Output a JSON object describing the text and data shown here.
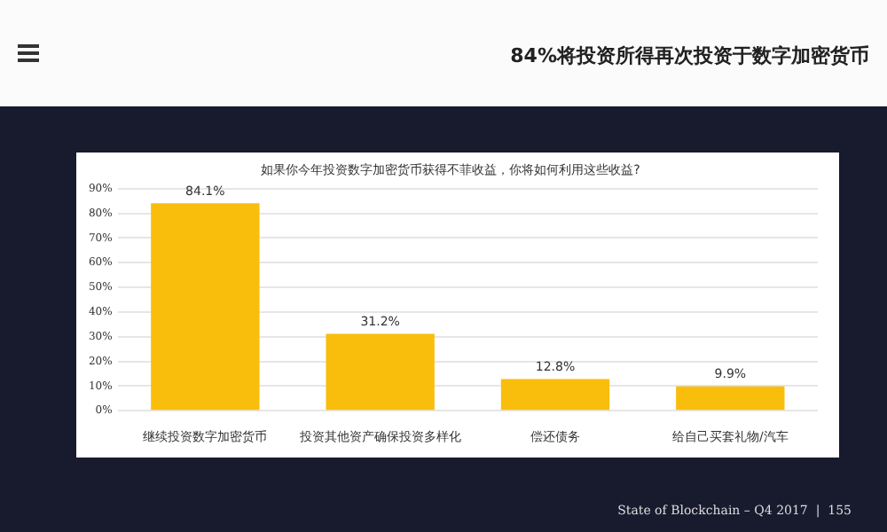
{
  "chart_data": {
    "type": "bar",
    "title": "84%将投资所得再次投资于数字加密货币",
    "subtitle": "如果你今年投资数字加密货币获得不菲收益，你将如何利用这些收益?",
    "categories": [
      "继续投资数字加密货币",
      "投资其他资产确保投资多样化",
      "偿还债务",
      "给自己买套礼物/汽车"
    ],
    "values": [
      84.1,
      31.2,
      12.8,
      9.9
    ],
    "value_labels": [
      "84.1%",
      "31.2%",
      "12.8%",
      "9.9%"
    ],
    "color": "#f9bd0b",
    "ylim": [
      0,
      90
    ],
    "yticks": [
      {
        "value": 0,
        "label": "0%"
      },
      {
        "value": 10,
        "label": "10%"
      },
      {
        "value": 20,
        "label": "20%"
      },
      {
        "value": 30,
        "label": "30%"
      },
      {
        "value": 40,
        "label": "40%"
      },
      {
        "value": 50,
        "label": "50%"
      },
      {
        "value": 60,
        "label": "60%"
      },
      {
        "value": 70,
        "label": "70%"
      },
      {
        "value": 80,
        "label": "80%"
      },
      {
        "value": 90,
        "label": "90%"
      }
    ],
    "grid": "y",
    "legend": false,
    "annotations": [
      "State of Blockchain – Q4 2017  |  155"
    ]
  }
}
